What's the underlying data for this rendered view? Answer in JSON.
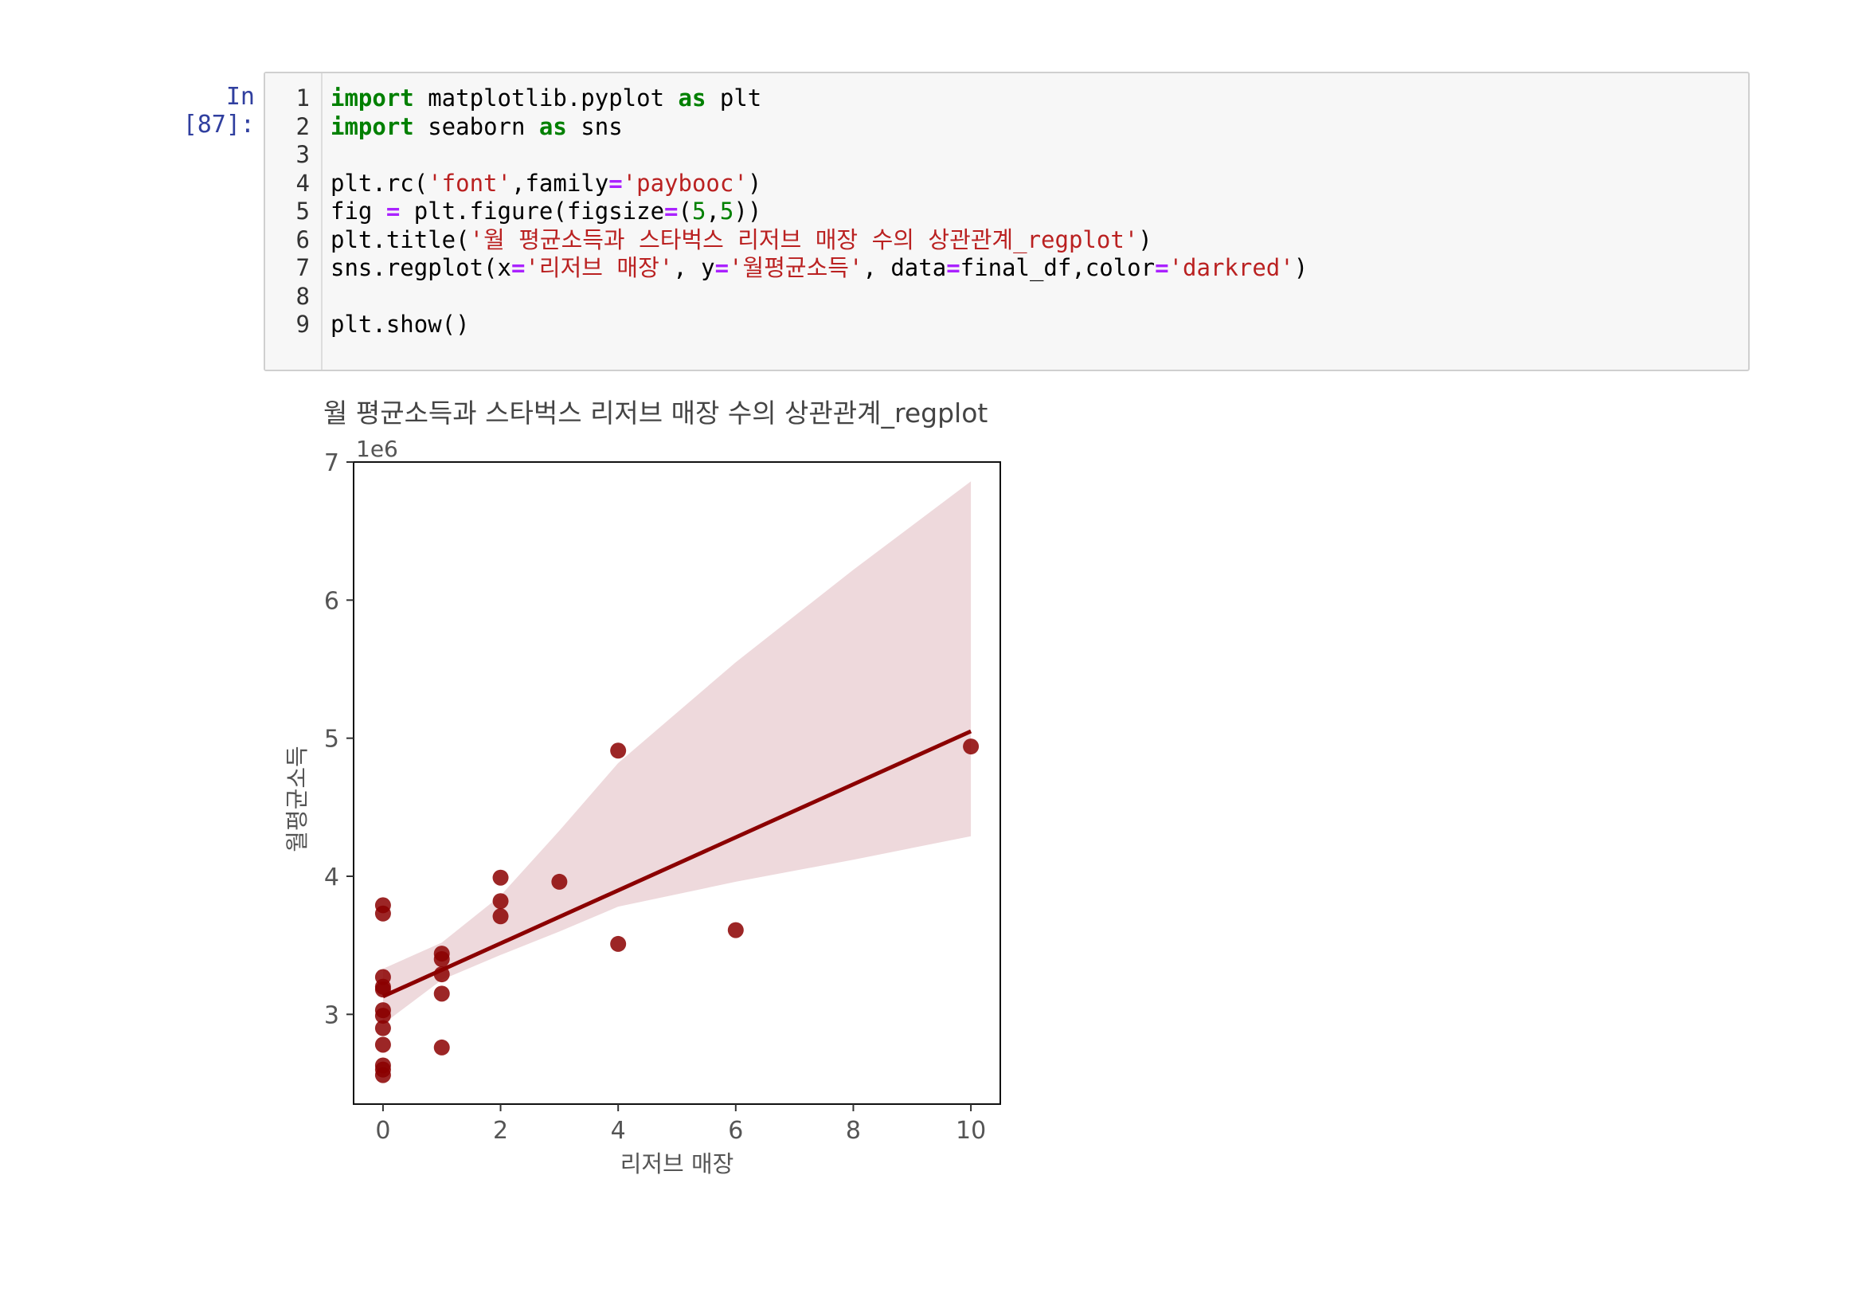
{
  "cell": {
    "prompt": "In [87]:",
    "lines": [
      {
        "n": "1",
        "tokens": [
          {
            "t": "import",
            "c": "kw"
          },
          {
            "t": " matplotlib.pyplot ",
            "c": ""
          },
          {
            "t": "as",
            "c": "kw"
          },
          {
            "t": " plt",
            "c": ""
          }
        ]
      },
      {
        "n": "2",
        "tokens": [
          {
            "t": "import",
            "c": "kw"
          },
          {
            "t": " seaborn ",
            "c": ""
          },
          {
            "t": "as",
            "c": "kw"
          },
          {
            "t": " sns",
            "c": ""
          }
        ]
      },
      {
        "n": "3",
        "tokens": []
      },
      {
        "n": "4",
        "tokens": [
          {
            "t": "plt.rc(",
            "c": ""
          },
          {
            "t": "'font'",
            "c": "str"
          },
          {
            "t": ",family",
            "c": ""
          },
          {
            "t": "=",
            "c": "op"
          },
          {
            "t": "'paybooc'",
            "c": "str"
          },
          {
            "t": ")",
            "c": ""
          }
        ]
      },
      {
        "n": "5",
        "tokens": [
          {
            "t": "fig ",
            "c": ""
          },
          {
            "t": "=",
            "c": "op"
          },
          {
            "t": " plt.figure(figsize",
            "c": ""
          },
          {
            "t": "=",
            "c": "op"
          },
          {
            "t": "(",
            "c": ""
          },
          {
            "t": "5",
            "c": "num"
          },
          {
            "t": ",",
            "c": ""
          },
          {
            "t": "5",
            "c": "num"
          },
          {
            "t": "))",
            "c": ""
          }
        ]
      },
      {
        "n": "6",
        "tokens": [
          {
            "t": "plt.title(",
            "c": ""
          },
          {
            "t": "'월 평균소득과 스타벅스 리저브 매장 수의 상관관계_regplot'",
            "c": "str"
          },
          {
            "t": ")",
            "c": ""
          }
        ]
      },
      {
        "n": "7",
        "tokens": [
          {
            "t": "sns.regplot(x",
            "c": ""
          },
          {
            "t": "=",
            "c": "op"
          },
          {
            "t": "'리저브 매장'",
            "c": "str"
          },
          {
            "t": ", y",
            "c": ""
          },
          {
            "t": "=",
            "c": "op"
          },
          {
            "t": "'월평균소득'",
            "c": "str"
          },
          {
            "t": ", data",
            "c": ""
          },
          {
            "t": "=",
            "c": "op"
          },
          {
            "t": "final_df,color",
            "c": ""
          },
          {
            "t": "=",
            "c": "op"
          },
          {
            "t": "'darkred'",
            "c": "str"
          },
          {
            "t": ")",
            "c": ""
          }
        ]
      },
      {
        "n": "8",
        "tokens": []
      },
      {
        "n": "9",
        "tokens": [
          {
            "t": "plt.show()",
            "c": ""
          }
        ]
      }
    ]
  },
  "chart_data": {
    "type": "scatter",
    "title": "월 평균소득과 스타벅스 리저브 매장 수의 상관관계_regplot",
    "xlabel": "리저브 매장",
    "ylabel": "월평균소득",
    "offset_label": "1e6",
    "xlim": [
      -0.5,
      10.5
    ],
    "ylim": [
      2.35,
      7.0
    ],
    "xticks": [
      0,
      2,
      4,
      6,
      8,
      10
    ],
    "yticks": [
      3,
      4,
      5,
      6,
      7
    ],
    "color": "#8b0000",
    "band_color": "#eed9dc",
    "points": [
      {
        "x": 0,
        "y": 3.79
      },
      {
        "x": 0,
        "y": 3.73
      },
      {
        "x": 0,
        "y": 3.27
      },
      {
        "x": 0,
        "y": 3.2
      },
      {
        "x": 0,
        "y": 3.18
      },
      {
        "x": 0,
        "y": 3.03
      },
      {
        "x": 0,
        "y": 2.99
      },
      {
        "x": 0,
        "y": 2.9
      },
      {
        "x": 0,
        "y": 2.78
      },
      {
        "x": 0,
        "y": 2.63
      },
      {
        "x": 0,
        "y": 2.6
      },
      {
        "x": 0,
        "y": 2.56
      },
      {
        "x": 1,
        "y": 3.44
      },
      {
        "x": 1,
        "y": 3.4
      },
      {
        "x": 1,
        "y": 3.29
      },
      {
        "x": 1,
        "y": 3.15
      },
      {
        "x": 1,
        "y": 2.76
      },
      {
        "x": 2,
        "y": 3.99
      },
      {
        "x": 2,
        "y": 3.82
      },
      {
        "x": 2,
        "y": 3.71
      },
      {
        "x": 3,
        "y": 3.96
      },
      {
        "x": 4,
        "y": 4.91
      },
      {
        "x": 4,
        "y": 3.51
      },
      {
        "x": 6,
        "y": 3.61
      },
      {
        "x": 10,
        "y": 4.94
      }
    ],
    "regression": {
      "x": [
        0,
        10
      ],
      "y": [
        3.13,
        5.05
      ]
    },
    "ci_upper": {
      "x": [
        0,
        1,
        2,
        3,
        4,
        6,
        8,
        10
      ],
      "y": [
        3.33,
        3.52,
        3.86,
        4.33,
        4.82,
        5.55,
        6.22,
        6.86
      ]
    },
    "ci_lower": {
      "x": [
        0,
        1,
        2,
        3,
        4,
        6,
        8,
        10
      ],
      "y": [
        2.93,
        3.25,
        3.43,
        3.6,
        3.78,
        3.96,
        4.12,
        4.29
      ]
    }
  }
}
